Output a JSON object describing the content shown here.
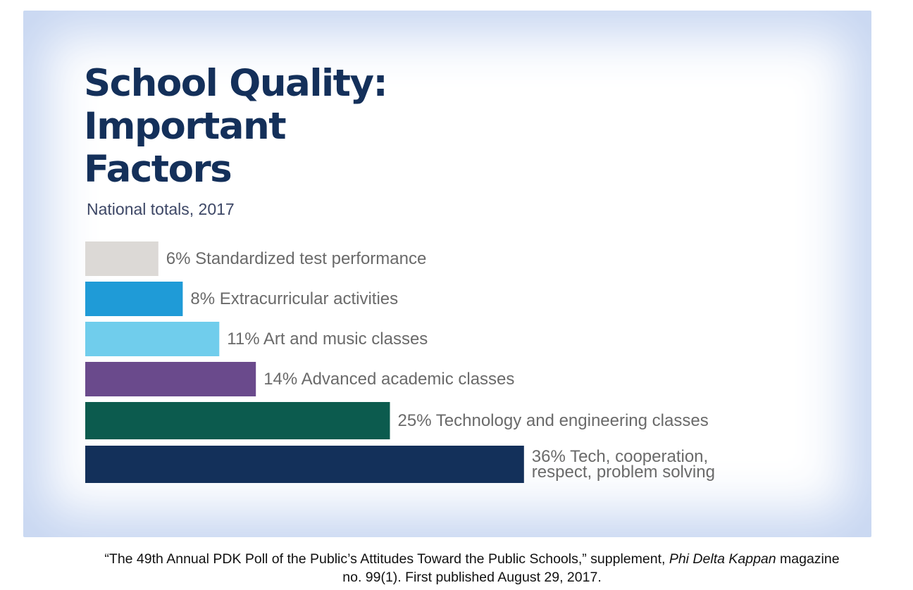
{
  "chart_data": {
    "type": "bar",
    "orientation": "horizontal",
    "title": "School Quality:\nImportant\nFactors",
    "subtitle": "National totals, 2017",
    "unit": "%",
    "categories": [
      "Standardized test performance",
      "Extracurricular activities",
      "Art and music classes",
      "Advanced academic classes",
      "Technology and engineering classes",
      "Tech, cooperation, respect, problem solving"
    ],
    "values": [
      6,
      8,
      11,
      14,
      25,
      36
    ],
    "labels": [
      [
        "6% Standardized test performance"
      ],
      [
        "8% Extracurricular activities"
      ],
      [
        "11% Art and music classes"
      ],
      [
        "14% Advanced academic classes"
      ],
      [
        "25% Technology and engineering classes"
      ],
      [
        "36% Tech, cooperation,",
        "respect, problem solving"
      ]
    ],
    "colors": [
      "#dcd9d6",
      "#1f9bd7",
      "#70cdec",
      "#6a4a8c",
      "#0c5b4e",
      "#13305a"
    ],
    "grid": false,
    "legend": "none"
  },
  "source": {
    "line1_before": "“The 49th Annual PDK Poll of the Public’s Attitudes Toward the Public Schools,” supplement, ",
    "journal": "Phi Delta Kappan",
    "line1_after": " magazine",
    "line2": "no. 99(1). First published August 29, 2017."
  }
}
